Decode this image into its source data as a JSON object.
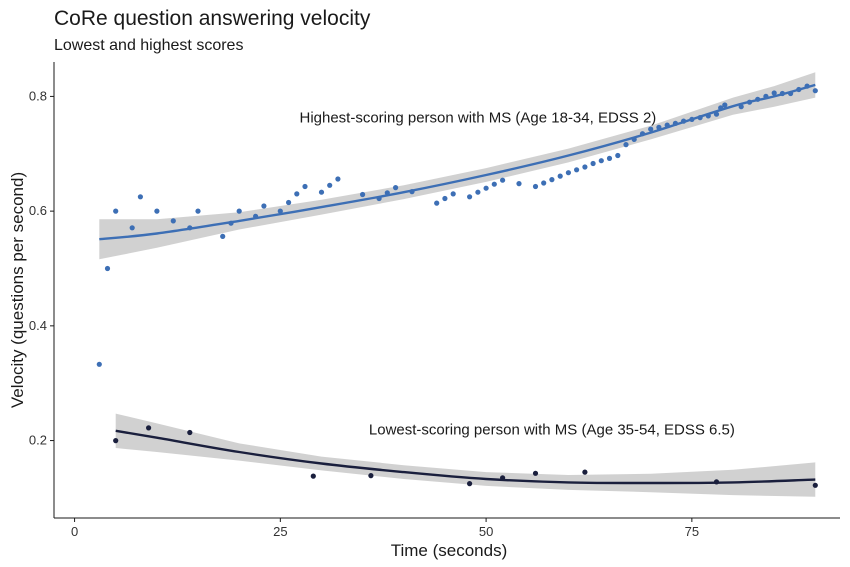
{
  "chart_data": {
    "type": "scatter",
    "title": "CoRe question answering velocity",
    "subtitle": "Lowest and highest scores",
    "xlabel": "Time (seconds)",
    "ylabel": "Velocity (questions per second)",
    "xlim": [
      -2.5,
      93
    ],
    "ylim": [
      0.065,
      0.86
    ],
    "x_ticks": [
      0,
      25,
      50,
      75
    ],
    "y_ticks": [
      0.2,
      0.4,
      0.6,
      0.8
    ],
    "x_tick_labels": [
      "0",
      "25",
      "50",
      "75"
    ],
    "y_tick_labels": [
      "0.2",
      "0.4",
      "0.6",
      "0.8"
    ],
    "grid": false,
    "annotations": [
      {
        "text": "Highest-scoring person with MS (Age 18-34, EDSS 2)",
        "x": 49,
        "y": 0.763
      },
      {
        "text": "Lowest-scoring person with MS (Age 35-54, EDSS 6.5)",
        "x": 58,
        "y": 0.219
      }
    ],
    "series": [
      {
        "color": "#3d6fb5",
        "points": [
          [
            3,
            0.333
          ],
          [
            4,
            0.5
          ],
          [
            5,
            0.6
          ],
          [
            7,
            0.571
          ],
          [
            8,
            0.625
          ],
          [
            10,
            0.6
          ],
          [
            12,
            0.583
          ],
          [
            14,
            0.571
          ],
          [
            15,
            0.6
          ],
          [
            18,
            0.556
          ],
          [
            19,
            0.579
          ],
          [
            20,
            0.6
          ],
          [
            22,
            0.591
          ],
          [
            23,
            0.609
          ],
          [
            25,
            0.6
          ],
          [
            26,
            0.615
          ],
          [
            27,
            0.63
          ],
          [
            28,
            0.643
          ],
          [
            30,
            0.633
          ],
          [
            31,
            0.645
          ],
          [
            32,
            0.656
          ],
          [
            35,
            0.629
          ],
          [
            37,
            0.622
          ],
          [
            38,
            0.632
          ],
          [
            39,
            0.641
          ],
          [
            41,
            0.634
          ],
          [
            44,
            0.614
          ],
          [
            45,
            0.622
          ],
          [
            46,
            0.63
          ],
          [
            48,
            0.625
          ],
          [
            49,
            0.633
          ],
          [
            50,
            0.64
          ],
          [
            51,
            0.647
          ],
          [
            52,
            0.654
          ],
          [
            54,
            0.648
          ],
          [
            56,
            0.643
          ],
          [
            57,
            0.649
          ],
          [
            58,
            0.655
          ],
          [
            59,
            0.661
          ],
          [
            60,
            0.667
          ],
          [
            61,
            0.672
          ],
          [
            62,
            0.677
          ],
          [
            63,
            0.683
          ],
          [
            64,
            0.688
          ],
          [
            65,
            0.692
          ],
          [
            66,
            0.697
          ],
          [
            67,
            0.716
          ],
          [
            68,
            0.725
          ],
          [
            69,
            0.735
          ],
          [
            70,
            0.743
          ],
          [
            71,
            0.746
          ],
          [
            72,
            0.75
          ],
          [
            73,
            0.753
          ],
          [
            74,
            0.757
          ],
          [
            75,
            0.76
          ],
          [
            76,
            0.763
          ],
          [
            77,
            0.766
          ],
          [
            78,
            0.769
          ],
          [
            78.5,
            0.78
          ],
          [
            79,
            0.785
          ],
          [
            81,
            0.782
          ],
          [
            82,
            0.79
          ],
          [
            83,
            0.795
          ],
          [
            84,
            0.8
          ],
          [
            85,
            0.806
          ],
          [
            86,
            0.805
          ],
          [
            87,
            0.805
          ],
          [
            88,
            0.812
          ],
          [
            89,
            0.818
          ],
          [
            90,
            0.81
          ]
        ],
        "fit": {
          "x": [
            3,
            10,
            20,
            30,
            40,
            50,
            60,
            70,
            80,
            85,
            90
          ],
          "y": [
            0.551,
            0.561,
            0.583,
            0.607,
            0.633,
            0.663,
            0.697,
            0.737,
            0.783,
            0.8,
            0.82
          ],
          "ci": [
            0.035,
            0.025,
            0.015,
            0.013,
            0.012,
            0.012,
            0.012,
            0.012,
            0.015,
            0.018,
            0.022
          ]
        }
      },
      {
        "color": "#1a1f3d",
        "points": [
          [
            5,
            0.2
          ],
          [
            9,
            0.222
          ],
          [
            14,
            0.214
          ],
          [
            29,
            0.138
          ],
          [
            36,
            0.139
          ],
          [
            48,
            0.125
          ],
          [
            52,
            0.135
          ],
          [
            56,
            0.143
          ],
          [
            62,
            0.145
          ],
          [
            78,
            0.128
          ],
          [
            90,
            0.122
          ]
        ],
        "fit": {
          "x": [
            5,
            10,
            20,
            30,
            40,
            50,
            60,
            70,
            80,
            90
          ],
          "y": [
            0.217,
            0.205,
            0.18,
            0.16,
            0.145,
            0.133,
            0.127,
            0.126,
            0.127,
            0.132
          ],
          "ci": [
            0.03,
            0.025,
            0.015,
            0.012,
            0.012,
            0.012,
            0.013,
            0.016,
            0.022,
            0.03
          ]
        }
      }
    ]
  }
}
